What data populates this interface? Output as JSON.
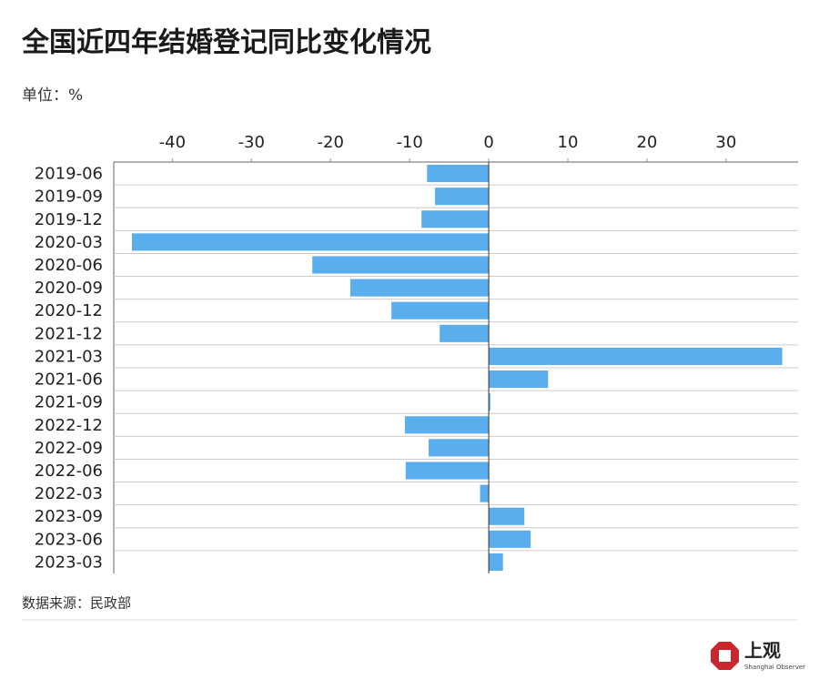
{
  "chart_data": {
    "type": "hbar",
    "title": "全国近四年结婚登记同比变化情况",
    "subtitle": "单位：%",
    "source": "数据来源：民政部",
    "brand": {
      "name": "上观",
      "tagline": "Shanghai Observer"
    },
    "categories": [
      "2019-06",
      "2019-09",
      "2019-12",
      "2020-03",
      "2020-06",
      "2020-09",
      "2020-12",
      "2021-12",
      "2021-03",
      "2021-06",
      "2021-09",
      "2022-12",
      "2022-09",
      "2022-06",
      "2022-03",
      "2023-09",
      "2023-06",
      "2023-03"
    ],
    "values": [
      -7.8,
      -6.8,
      -8.5,
      -45.1,
      -22.3,
      -17.5,
      -12.3,
      -6.2,
      37.1,
      7.5,
      0.2,
      -10.6,
      -7.6,
      -10.5,
      -1.1,
      4.5,
      5.3,
      1.8
    ],
    "color": "#5aaeee",
    "xlim": [
      -47.4,
      39.1
    ],
    "xticks": [
      -40,
      -30,
      -20,
      -10,
      0,
      10,
      20,
      30
    ],
    "grid": true
  }
}
